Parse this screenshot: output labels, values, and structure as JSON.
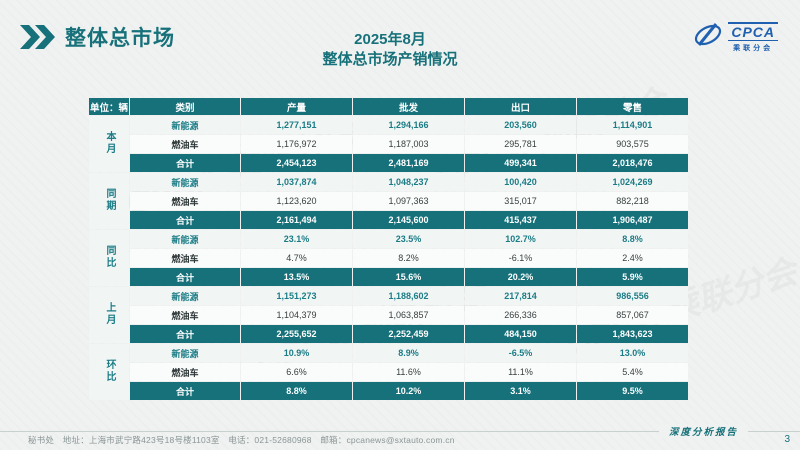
{
  "slide": {
    "section_title": "整体总市场",
    "title_line1": "2025年8月",
    "title_line2": "整体总市场产销情况",
    "page_number": "3",
    "footer_left": "秘书处　地址：上海市武宁路423号18号楼1103室　电话：021-52680968　邮箱：cpcanews@sxtauto.com.cn",
    "footer_right_label": "深度分析报告",
    "watermark_text": "CPCA 乘联分会"
  },
  "logo": {
    "text": "CPCA",
    "subtext": "乘联分会"
  },
  "colors": {
    "accent_teal": "#17717a",
    "logo_blue": "#2060b0"
  },
  "table": {
    "unit_label": "单位：辆",
    "columns": [
      "类别",
      "产量",
      "批发",
      "出口",
      "零售"
    ],
    "groups": [
      {
        "label": "本月",
        "rows": [
          {
            "category": "新能源",
            "type": "nev",
            "values": [
              "1,277,151",
              "1,294,166",
              "203,560",
              "1,114,901"
            ]
          },
          {
            "category": "燃油车",
            "type": "ice",
            "values": [
              "1,176,972",
              "1,187,003",
              "295,781",
              "903,575"
            ]
          },
          {
            "category": "合计",
            "type": "total",
            "values": [
              "2,454,123",
              "2,481,169",
              "499,341",
              "2,018,476"
            ]
          }
        ]
      },
      {
        "label": "同期",
        "rows": [
          {
            "category": "新能源",
            "type": "nev",
            "values": [
              "1,037,874",
              "1,048,237",
              "100,420",
              "1,024,269"
            ]
          },
          {
            "category": "燃油车",
            "type": "ice",
            "values": [
              "1,123,620",
              "1,097,363",
              "315,017",
              "882,218"
            ]
          },
          {
            "category": "合计",
            "type": "total",
            "values": [
              "2,161,494",
              "2,145,600",
              "415,437",
              "1,906,487"
            ]
          }
        ]
      },
      {
        "label": "同比",
        "rows": [
          {
            "category": "新能源",
            "type": "nev",
            "values": [
              "23.1%",
              "23.5%",
              "102.7%",
              "8.8%"
            ]
          },
          {
            "category": "燃油车",
            "type": "ice",
            "values": [
              "4.7%",
              "8.2%",
              "-6.1%",
              "2.4%"
            ]
          },
          {
            "category": "合计",
            "type": "total",
            "values": [
              "13.5%",
              "15.6%",
              "20.2%",
              "5.9%"
            ]
          }
        ]
      },
      {
        "label": "上月",
        "rows": [
          {
            "category": "新能源",
            "type": "nev",
            "values": [
              "1,151,273",
              "1,188,602",
              "217,814",
              "986,556"
            ]
          },
          {
            "category": "燃油车",
            "type": "ice",
            "values": [
              "1,104,379",
              "1,063,857",
              "266,336",
              "857,067"
            ]
          },
          {
            "category": "合计",
            "type": "total",
            "values": [
              "2,255,652",
              "2,252,459",
              "484,150",
              "1,843,623"
            ]
          }
        ]
      },
      {
        "label": "环比",
        "rows": [
          {
            "category": "新能源",
            "type": "nev",
            "values": [
              "10.9%",
              "8.9%",
              "-6.5%",
              "13.0%"
            ]
          },
          {
            "category": "燃油车",
            "type": "ice",
            "values": [
              "6.6%",
              "11.6%",
              "11.1%",
              "5.4%"
            ]
          },
          {
            "category": "合计",
            "type": "total",
            "values": [
              "8.8%",
              "10.2%",
              "3.1%",
              "9.5%"
            ]
          }
        ]
      }
    ]
  }
}
